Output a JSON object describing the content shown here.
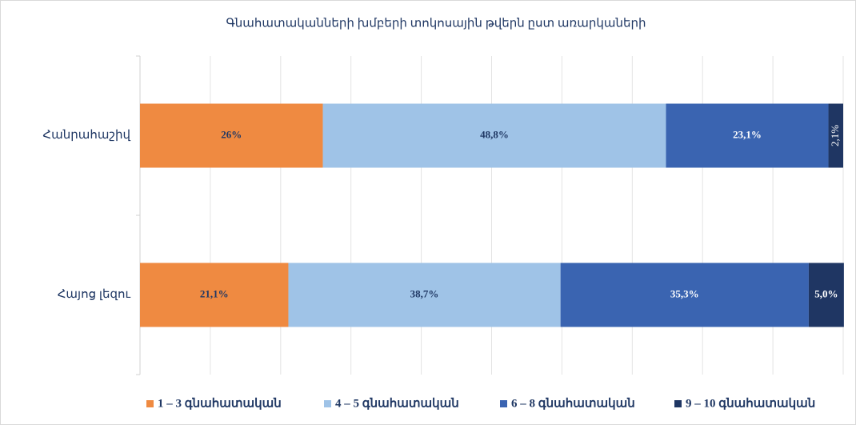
{
  "chart_data": {
    "type": "stacked_barh",
    "title": "Գնահատականների խմբերի տոկոսային թվերն ըստ առարկաների",
    "categories": [
      "Հանրահաշիվ",
      "Հայոց լեզու"
    ],
    "series": [
      {
        "name": "1 – 3 գնահատական",
        "color": "#ef8a41",
        "values": [
          26,
          21.1
        ],
        "value_labels": [
          "26%",
          "21,1%"
        ]
      },
      {
        "name": "4 – 5 գնահատական",
        "color": "#9fc3e7",
        "values": [
          48.8,
          38.7
        ],
        "value_labels": [
          "48,8%",
          "38,7%"
        ]
      },
      {
        "name": "6 – 8 գնահատական",
        "color": "#3a64b1",
        "values": [
          23.1,
          35.3
        ],
        "value_labels": [
          "23,1%",
          "35,3%"
        ]
      },
      {
        "name": "9 – 10 գնահատական",
        "color": "#1f3663",
        "values": [
          2.1,
          5.0
        ],
        "value_labels": [
          "2,1%",
          "5,0%"
        ]
      }
    ],
    "xlim": [
      0,
      100
    ],
    "xticks": [
      0,
      10,
      20,
      30,
      40,
      50,
      60,
      70,
      80,
      90,
      100
    ],
    "grid": true,
    "legend": "bottom"
  }
}
